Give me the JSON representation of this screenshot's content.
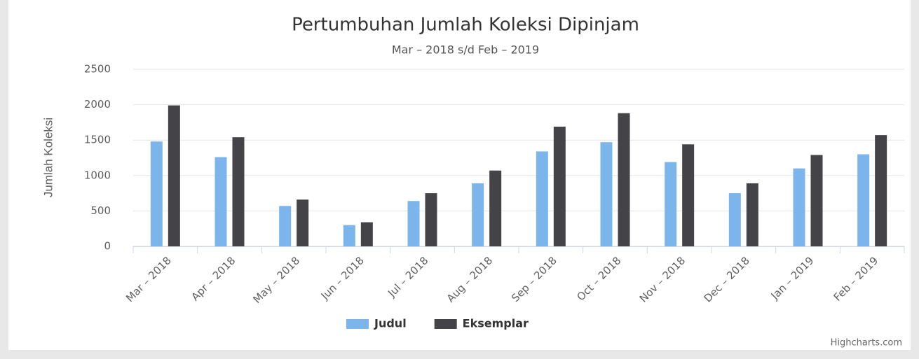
{
  "chart_data": {
    "type": "bar",
    "title": "Pertumbuhan Jumlah Koleksi Dipinjam",
    "subtitle": "Mar – 2018 s/d Feb – 2019",
    "y_label": "Jumlah Koleksi",
    "credits": "Highcharts.com",
    "categories": [
      "Mar – 2018",
      "Apr – 2018",
      "May – 2018",
      "Jun – 2018",
      "Jul – 2018",
      "Aug – 2018",
      "Sep – 2018",
      "Oct – 2018",
      "Nov – 2018",
      "Dec – 2018",
      "Jan – 2019",
      "Feb – 2019"
    ],
    "series": [
      {
        "name": "Judul",
        "color": "#7cb5ec",
        "values": [
          1480,
          1260,
          570,
          300,
          640,
          890,
          1340,
          1470,
          1190,
          750,
          1100,
          1300
        ]
      },
      {
        "name": "Eksemplar",
        "color": "#434348",
        "values": [
          1990,
          1540,
          660,
          340,
          750,
          1070,
          1690,
          1880,
          1440,
          890,
          1290,
          1570
        ]
      }
    ],
    "ylim": [
      0,
      2500
    ],
    "yticks": [
      0,
      500,
      1000,
      1500,
      2000,
      2500
    ],
    "grid": true,
    "legend": "bottom"
  }
}
